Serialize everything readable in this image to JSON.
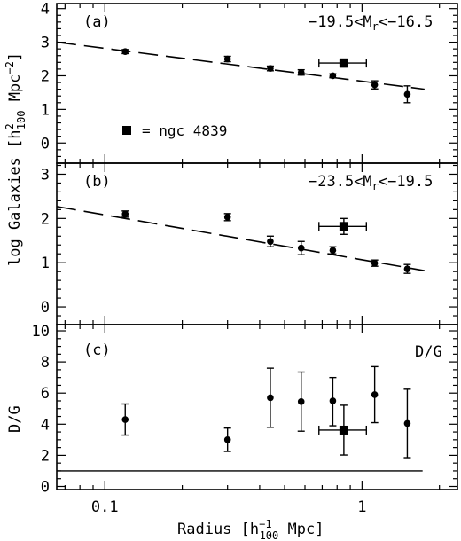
{
  "chart_data": [
    {
      "type": "scatter",
      "panel": "(a)",
      "annotation": "−19.5<M",
      "annotation_sub": "r",
      "annotation_tail": "<−16.5",
      "ylabel": "log Galaxies [h",
      "ylabel_sup": "2",
      "ylabel_sub": "100",
      "ylabel_tail": " Mpc",
      "ylabel_exp": "−2",
      "ylabel_close": "]",
      "xscale": "log",
      "xlim": [
        0.065,
        2.35
      ],
      "ylim": [
        -0.6,
        4.15
      ],
      "yticks": [
        "0",
        "1",
        "2",
        "3",
        "4"
      ],
      "legend_text": "= ngc 4839",
      "series": [
        {
          "marker": "circle",
          "x": [
            0.12,
            0.3,
            0.44,
            0.58,
            0.77,
            1.12,
            1.5
          ],
          "y": [
            2.72,
            2.5,
            2.22,
            2.1,
            2.0,
            1.73,
            1.45
          ],
          "yerr": [
            0.06,
            0.08,
            0.07,
            0.08,
            0.06,
            0.12,
            0.25
          ]
        },
        {
          "marker": "square",
          "x": [
            0.85
          ],
          "y": [
            2.38
          ],
          "yerr": [
            0.12
          ],
          "xerr": [
            [
              0.68,
              1.04
            ]
          ]
        }
      ],
      "fit_line": [
        [
          0.065,
          3.0
        ],
        [
          1.75,
          1.6
        ]
      ]
    },
    {
      "type": "scatter",
      "panel": "(b)",
      "annotation": "−23.5<M",
      "annotation_sub": "r",
      "annotation_tail": "<−19.5",
      "xscale": "log",
      "xlim": [
        0.065,
        2.35
      ],
      "ylim": [
        -0.4,
        3.25
      ],
      "yticks": [
        "0",
        "1",
        "2",
        "3"
      ],
      "series": [
        {
          "marker": "circle",
          "x": [
            0.12,
            0.3,
            0.44,
            0.58,
            0.77,
            1.12,
            1.5
          ],
          "y": [
            2.1,
            2.03,
            1.48,
            1.33,
            1.28,
            0.99,
            0.86
          ],
          "yerr": [
            0.07,
            0.08,
            0.12,
            0.15,
            0.08,
            0.07,
            0.1
          ]
        },
        {
          "marker": "square",
          "x": [
            0.85
          ],
          "y": [
            1.82
          ],
          "yerr": [
            0.18
          ],
          "xerr": [
            [
              0.68,
              1.04
            ]
          ]
        }
      ],
      "fit_line": [
        [
          0.065,
          2.27
        ],
        [
          1.75,
          0.82
        ]
      ]
    },
    {
      "type": "scatter",
      "panel": "(c)",
      "annotation": "D/G",
      "ylabel": "D/G",
      "xlabel": "Radius [h",
      "xlabel_sup": "−1",
      "xlabel_sub": "100",
      "xlabel_tail": " Mpc]",
      "xscale": "log",
      "xlim": [
        0.065,
        2.35
      ],
      "ylim": [
        -0.2,
        10.4
      ],
      "yticks": [
        "0",
        "2",
        "4",
        "6",
        "8",
        "10"
      ],
      "xticks": [
        "0.1",
        "1"
      ],
      "series": [
        {
          "marker": "circle",
          "x": [
            0.12,
            0.3,
            0.44,
            0.58,
            0.77,
            1.12,
            1.5
          ],
          "y": [
            4.3,
            3.0,
            5.7,
            5.45,
            5.5,
            5.9,
            4.05
          ],
          "yerr_low": [
            1.0,
            0.75,
            1.9,
            1.9,
            1.6,
            1.8,
            2.2
          ],
          "yerr_high": [
            1.0,
            0.75,
            1.9,
            1.9,
            1.5,
            1.8,
            2.2
          ]
        },
        {
          "marker": "square",
          "x": [
            0.85
          ],
          "y": [
            3.62
          ],
          "yerr_low": [
            1.6
          ],
          "yerr_high": [
            1.6
          ],
          "xerr": [
            [
              0.68,
              1.04
            ]
          ]
        }
      ],
      "hline": 1.0
    }
  ]
}
